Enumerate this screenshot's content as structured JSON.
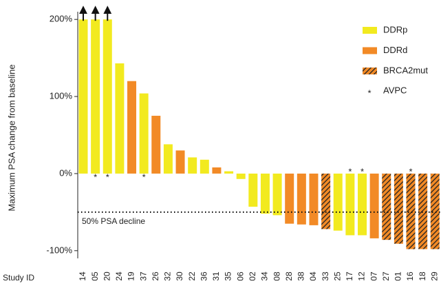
{
  "chart_data": {
    "type": "waterfall",
    "y_label": "Maximum PSA change from baseline",
    "x_label": "Study ID",
    "categories": [
      "14",
      "05",
      "20",
      "24",
      "19",
      "37",
      "26",
      "32",
      "30",
      "22",
      "36",
      "31",
      "35",
      "06",
      "02",
      "34",
      "08",
      "28",
      "38",
      "04",
      "33",
      "25",
      "17",
      "12",
      "07",
      "27",
      "01",
      "16",
      "18",
      "29"
    ],
    "values": [
      200,
      200,
      200,
      143,
      120,
      104,
      75,
      38,
      30,
      21,
      18,
      8,
      3,
      -7,
      -43,
      -52,
      -54,
      -65,
      -66,
      -67,
      -72,
      -74,
      -80,
      -80,
      -84,
      -86,
      -91,
      -98,
      -98,
      -98
    ],
    "group": [
      0,
      0,
      0,
      0,
      1,
      0,
      1,
      0,
      1,
      0,
      0,
      1,
      0,
      0,
      0,
      0,
      0,
      1,
      1,
      1,
      2,
      0,
      0,
      0,
      1,
      2,
      2,
      2,
      2,
      2
    ],
    "truncated": [
      true,
      true,
      true,
      false,
      false,
      false,
      false,
      false,
      false,
      false,
      false,
      false,
      false,
      false,
      false,
      false,
      false,
      false,
      false,
      false,
      false,
      false,
      false,
      false,
      false,
      false,
      false,
      false,
      false,
      false
    ],
    "avpc": [
      false,
      true,
      true,
      false,
      false,
      true,
      false,
      false,
      false,
      false,
      false,
      false,
      false,
      false,
      false,
      false,
      false,
      false,
      false,
      false,
      false,
      false,
      true,
      true,
      false,
      false,
      false,
      true,
      false,
      false
    ],
    "groups": [
      {
        "name": "DDRp",
        "color": "#f2ea1f",
        "hatch": false
      },
      {
        "name": "DDRd",
        "color": "#f28a26",
        "hatch": false
      },
      {
        "name": "BRCA2mut",
        "color": "#f28a26",
        "hatch": true
      }
    ],
    "avpc_marker": "*",
    "avpc_label": "AVPC",
    "reference_line": {
      "value": -50,
      "label": "50% PSA decline"
    },
    "ylim": [
      -110,
      210
    ],
    "yticks": [
      {
        "value": -100,
        "label": "-100%"
      },
      {
        "value": 0,
        "label": "0%"
      },
      {
        "value": 100,
        "label": "100%"
      },
      {
        "value": 200,
        "label": "200%"
      }
    ]
  }
}
